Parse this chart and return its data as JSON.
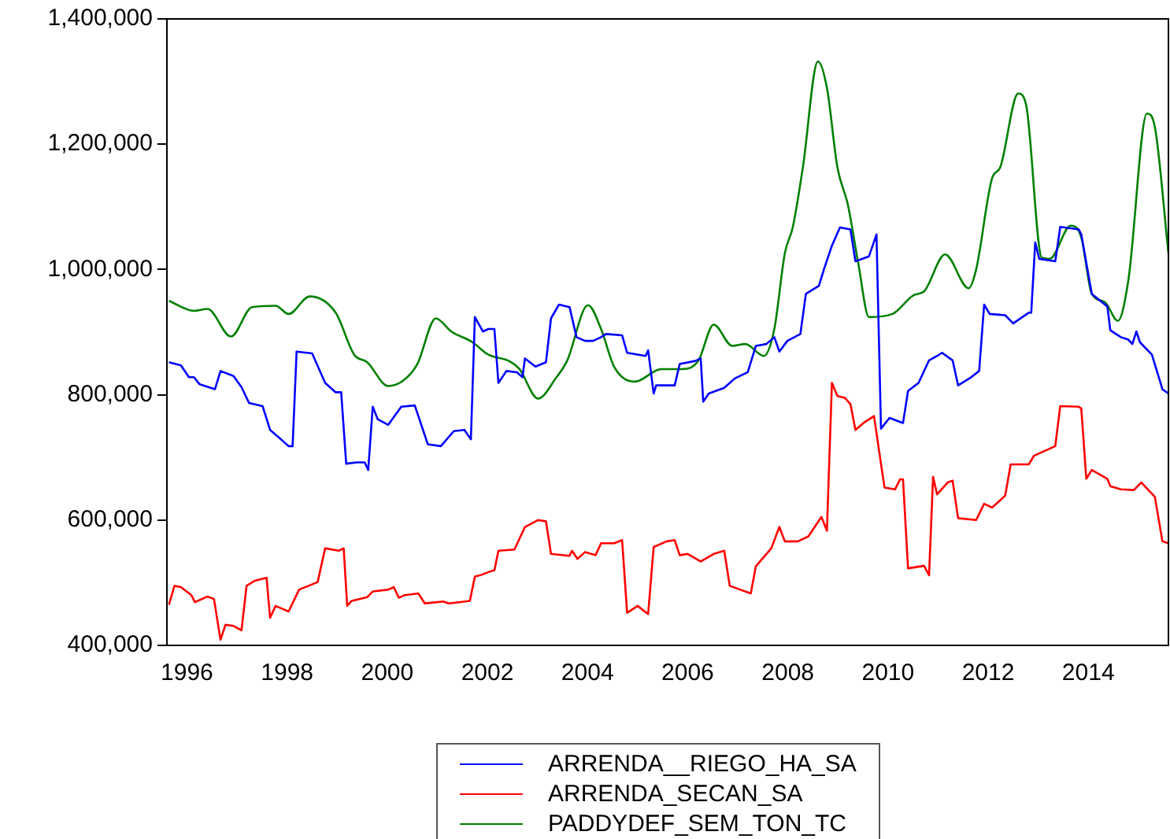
{
  "chart_data": {
    "type": "line",
    "xlim": [
      1995.6,
      2015.6
    ],
    "xticks": [
      1996,
      1998,
      2000,
      2002,
      2004,
      2006,
      2008,
      2010,
      2012,
      2014
    ],
    "ylim": [
      400000,
      1400000
    ],
    "yticks": [
      {
        "value": 400000,
        "label": "400,000"
      },
      {
        "value": 600000,
        "label": "600,000"
      },
      {
        "value": 800000,
        "label": "800,000"
      },
      {
        "value": 1000000,
        "label": "1,000,000"
      },
      {
        "value": 1200000,
        "label": "1,200,000"
      },
      {
        "value": 1400000,
        "label": "1,400,000"
      }
    ],
    "grid": false,
    "legend": "bottom",
    "marker": "none",
    "line_style": "solid",
    "series": [
      {
        "name": "ARRENDA__RIEGO_HA_SA",
        "color": "#0000ff",
        "x": [
          1995.64,
          1995.88,
          1996.04,
          1996.14,
          1996.25,
          1996.56,
          1996.67,
          1996.93,
          1997.09,
          1997.24,
          1997.51,
          1997.66,
          1997.82,
          1998.03,
          1998.11,
          1998.19,
          1998.5,
          1998.76,
          1998.97,
          1999.08,
          1999.18,
          1999.39,
          1999.55,
          1999.62,
          1999.71,
          1999.81,
          2000.02,
          2000.28,
          2000.55,
          2000.81,
          2001.07,
          2001.33,
          2001.54,
          2001.67,
          2001.75,
          2001.91,
          2002.02,
          2002.14,
          2002.22,
          2002.38,
          2002.59,
          2002.7,
          2002.75,
          2002.96,
          2003.17,
          2003.27,
          2003.43,
          2003.64,
          2003.78,
          2003.95,
          2004.11,
          2004.27,
          2004.37,
          2004.69,
          2004.79,
          2005.16,
          2005.21,
          2005.32,
          2005.37,
          2005.74,
          2005.84,
          2006.15,
          2006.26,
          2006.31,
          2006.42,
          2006.73,
          2006.94,
          2007.2,
          2007.36,
          2007.57,
          2007.73,
          2007.83,
          2007.99,
          2008.25,
          2008.36,
          2008.62,
          2008.72,
          2008.88,
          2009.04,
          2009.25,
          2009.35,
          2009.62,
          2009.77,
          2009.86,
          2010.03,
          2010.3,
          2010.4,
          2010.61,
          2010.82,
          2010.98,
          2011.08,
          2011.29,
          2011.4,
          2011.66,
          2011.82,
          2011.92,
          2012.03,
          2012.34,
          2012.5,
          2012.81,
          2012.86,
          2012.94,
          2013.02,
          2013.34,
          2013.44,
          2013.81,
          2013.86,
          2014.07,
          2014.38,
          2014.44,
          2014.65,
          2014.8,
          2014.88,
          2014.96,
          2015.03,
          2015.27,
          2015.48,
          2015.6
        ],
        "values": [
          852000,
          847000,
          828000,
          828000,
          817000,
          809000,
          838000,
          830000,
          812000,
          787000,
          782000,
          744000,
          733000,
          718000,
          718000,
          869000,
          866000,
          819000,
          804000,
          804000,
          690000,
          692000,
          692000,
          680000,
          781000,
          761000,
          752000,
          781000,
          783000,
          721000,
          718000,
          742000,
          744000,
          729000,
          924000,
          901000,
          905000,
          905000,
          819000,
          838000,
          836000,
          828000,
          858000,
          845000,
          852000,
          922000,
          944000,
          940000,
          892000,
          886000,
          886000,
          892000,
          897000,
          895000,
          867000,
          862000,
          871000,
          802000,
          815000,
          815000,
          849000,
          854000,
          858000,
          789000,
          802000,
          811000,
          826000,
          836000,
          878000,
          881000,
          892000,
          869000,
          886000,
          897000,
          961000,
          974000,
          1000000,
          1038000,
          1067000,
          1064000,
          1013000,
          1021000,
          1056000,
          746000,
          763000,
          755000,
          806000,
          819000,
          855000,
          862000,
          867000,
          855000,
          815000,
          828000,
          838000,
          944000,
          929000,
          927000,
          914000,
          931000,
          931000,
          1043000,
          1017000,
          1013000,
          1068000,
          1064000,
          1056000,
          961000,
          941000,
          903000,
          892000,
          888000,
          881000,
          901000,
          884000,
          864000,
          809000,
          802000
        ]
      },
      {
        "name": "ARRENDA_SECAN_SA",
        "color": "#ff0000",
        "x": [
          1995.64,
          1995.75,
          1995.88,
          1996.09,
          1996.16,
          1996.41,
          1996.54,
          1996.67,
          1996.77,
          1996.93,
          1997.09,
          1997.19,
          1997.35,
          1997.59,
          1997.66,
          1997.77,
          1998.03,
          1998.24,
          1998.61,
          1998.76,
          1999.03,
          1999.13,
          1999.2,
          1999.29,
          1999.6,
          1999.71,
          2000.02,
          2000.13,
          2000.23,
          2000.34,
          2000.62,
          2000.75,
          2001.12,
          2001.23,
          2001.65,
          2001.75,
          2001.86,
          2002.02,
          2002.14,
          2002.22,
          2002.54,
          2002.75,
          2003.01,
          2003.17,
          2003.27,
          2003.64,
          2003.69,
          2003.8,
          2003.95,
          2004.16,
          2004.27,
          2004.53,
          2004.69,
          2004.79,
          2005.0,
          2005.21,
          2005.32,
          2005.58,
          2005.74,
          2005.84,
          2006.0,
          2006.26,
          2006.52,
          2006.73,
          2006.84,
          2007.26,
          2007.36,
          2007.67,
          2007.83,
          2007.94,
          2008.2,
          2008.41,
          2008.67,
          2008.78,
          2008.88,
          2008.99,
          2009.14,
          2009.25,
          2009.35,
          2009.51,
          2009.72,
          2009.93,
          2010.14,
          2010.24,
          2010.3,
          2010.4,
          2010.72,
          2010.82,
          2010.9,
          2010.98,
          2011.19,
          2011.29,
          2011.4,
          2011.76,
          2011.92,
          2012.08,
          2012.34,
          2012.45,
          2012.81,
          2012.92,
          2013.34,
          2013.44,
          2013.81,
          2013.86,
          2013.96,
          2014.07,
          2014.38,
          2014.44,
          2014.65,
          2014.91,
          2015.06,
          2015.33,
          2015.48,
          2015.6
        ],
        "values": [
          465000,
          495000,
          493000,
          480000,
          469000,
          478000,
          474000,
          409000,
          433000,
          431000,
          424000,
          495000,
          503000,
          508000,
          444000,
          463000,
          454000,
          489000,
          501000,
          555000,
          551000,
          555000,
          463000,
          471000,
          477000,
          486000,
          489000,
          493000,
          476000,
          480000,
          483000,
          467000,
          470000,
          467000,
          471000,
          510000,
          512000,
          517000,
          520000,
          551000,
          553000,
          589000,
          600000,
          598000,
          546000,
          543000,
          551000,
          538000,
          549000,
          544000,
          563000,
          563000,
          568000,
          452000,
          463000,
          450000,
          557000,
          566000,
          568000,
          544000,
          546000,
          534000,
          546000,
          551000,
          495000,
          483000,
          526000,
          555000,
          589000,
          566000,
          566000,
          574000,
          605000,
          583000,
          819000,
          798000,
          795000,
          785000,
          744000,
          755000,
          766000,
          652000,
          649000,
          665000,
          665000,
          523000,
          527000,
          512000,
          669000,
          641000,
          660000,
          663000,
          603000,
          600000,
          626000,
          620000,
          639000,
          689000,
          689000,
          703000,
          718000,
          782000,
          781000,
          778000,
          666000,
          680000,
          666000,
          654000,
          649000,
          648000,
          660000,
          637000,
          566000,
          563000
        ]
      },
      {
        "name": "PADDYDEF_SEM_TON_TC",
        "color": "#008000",
        "x": [
          1995.64,
          1996.14,
          1996.41,
          1996.88,
          1997.3,
          1997.77,
          1998.03,
          1998.45,
          1998.97,
          1999.34,
          1999.6,
          2000.02,
          2000.34,
          2000.6,
          2000.97,
          2001.28,
          2001.7,
          2002.02,
          2002.43,
          2002.64,
          2003.01,
          2003.38,
          2003.59,
          2004.01,
          2004.27,
          2004.53,
          2004.95,
          2005.47,
          2005.89,
          2006.21,
          2006.52,
          2006.89,
          2007.15,
          2007.52,
          2007.73,
          2007.94,
          2008.1,
          2008.3,
          2008.6,
          2008.78,
          2008.99,
          2009.2,
          2009.41,
          2009.62,
          2010.09,
          2010.51,
          2010.72,
          2011.14,
          2011.61,
          2011.76,
          2012.08,
          2012.24,
          2012.6,
          2012.76,
          2013.07,
          2013.23,
          2013.65,
          2013.86,
          2014.07,
          2014.33,
          2014.59,
          2014.8,
          2015.17,
          2015.33,
          2015.6
        ],
        "values": [
          950000,
          934000,
          937000,
          893000,
          940000,
          942000,
          929000,
          957000,
          931000,
          864000,
          852000,
          814000,
          824000,
          849000,
          922000,
          901000,
          884000,
          864000,
          854000,
          841000,
          794000,
          828000,
          854000,
          943000,
          905000,
          845000,
          821000,
          841000,
          841000,
          854000,
          912000,
          878000,
          881000,
          862000,
          905000,
          1026000,
          1068000,
          1163000,
          1332000,
          1290000,
          1163000,
          1103000,
          1008000,
          924000,
          929000,
          959000,
          965000,
          1024000,
          970000,
          1000000,
          1146000,
          1163000,
          1281000,
          1262000,
          1019000,
          1017000,
          1070000,
          1051000,
          961000,
          948000,
          918000,
          983000,
          1249000,
          1227000,
          1026000
        ]
      }
    ]
  }
}
